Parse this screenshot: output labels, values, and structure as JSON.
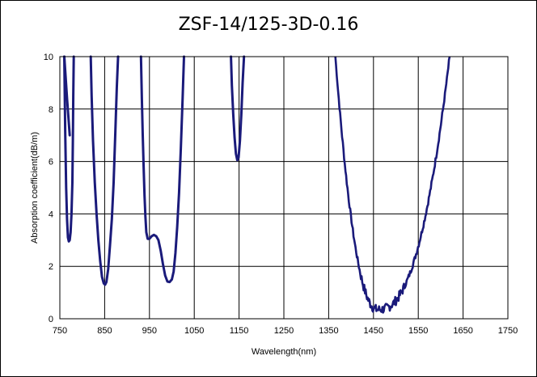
{
  "chart_data": {
    "type": "line",
    "title": "ZSF-14/125-3D-0.16",
    "xlabel": "Wavelength(nm)",
    "ylabel": "Absorption coefficient(dB/m)",
    "xlim": [
      750,
      1750
    ],
    "ylim": [
      0,
      10
    ],
    "x_ticks": [
      750,
      850,
      950,
      1050,
      1150,
      1250,
      1350,
      1450,
      1550,
      1650,
      1750
    ],
    "y_ticks": [
      0,
      2,
      4,
      6,
      8,
      10
    ],
    "grid": true,
    "legend": "none",
    "series_color": "#1a1a7a",
    "series": [
      {
        "segments": [
          [
            [
              760,
              10
            ],
            [
              762,
              7.2
            ],
            [
              764,
              5.0
            ],
            [
              766,
              3.8
            ],
            [
              768,
              3.1
            ],
            [
              770,
              2.95
            ],
            [
              772,
              3.0
            ],
            [
              774,
              3.3
            ],
            [
              776,
              4.0
            ],
            [
              778,
              5.2
            ],
            [
              779,
              6.8
            ],
            [
              780,
              8.5
            ],
            [
              781,
              10
            ]
          ],
          [
            [
              819,
              10
            ],
            [
              821,
              8.5
            ],
            [
              824,
              6.8
            ],
            [
              828,
              5.2
            ],
            [
              832,
              4.0
            ],
            [
              836,
              3.0
            ],
            [
              840,
              2.2
            ],
            [
              844,
              1.6
            ],
            [
              848,
              1.35
            ],
            [
              851,
              1.3
            ],
            [
              854,
              1.4
            ],
            [
              858,
              1.9
            ],
            [
              862,
              2.8
            ],
            [
              866,
              3.8
            ],
            [
              870,
              5.2
            ],
            [
              874,
              7.2
            ],
            [
              877,
              8.8
            ],
            [
              880,
              10
            ]
          ],
          [
            [
              931,
              10
            ],
            [
              933,
              8.4
            ],
            [
              935,
              7.0
            ],
            [
              937,
              5.8
            ],
            [
              939,
              4.7
            ],
            [
              941,
              3.9
            ],
            [
              943,
              3.3
            ],
            [
              946,
              3.05
            ],
            [
              950,
              3.05
            ],
            [
              955,
              3.15
            ],
            [
              960,
              3.2
            ],
            [
              965,
              3.15
            ],
            [
              970,
              3.0
            ],
            [
              975,
              2.6
            ],
            [
              980,
              2.1
            ],
            [
              985,
              1.65
            ],
            [
              990,
              1.42
            ],
            [
              995,
              1.4
            ],
            [
              1000,
              1.5
            ],
            [
              1004,
              1.8
            ],
            [
              1008,
              2.5
            ],
            [
              1012,
              3.5
            ],
            [
              1016,
              4.8
            ],
            [
              1020,
              6.5
            ],
            [
              1024,
              8.4
            ],
            [
              1027,
              10
            ]
          ],
          [
            [
              1132,
              10
            ],
            [
              1134,
              8.9
            ],
            [
              1137,
              7.8
            ],
            [
              1140,
              6.9
            ],
            [
              1143,
              6.3
            ],
            [
              1146,
              6.05
            ],
            [
              1149,
              6.15
            ],
            [
              1152,
              6.8
            ],
            [
              1155,
              7.8
            ],
            [
              1158,
              9.0
            ],
            [
              1161,
              10
            ]
          ]
        ]
      },
      {
        "segments": [
          [
            [
              760,
              10
            ],
            [
              766,
              8.4
            ],
            [
              772,
              7.0
            ]
          ]
        ]
      }
    ]
  }
}
